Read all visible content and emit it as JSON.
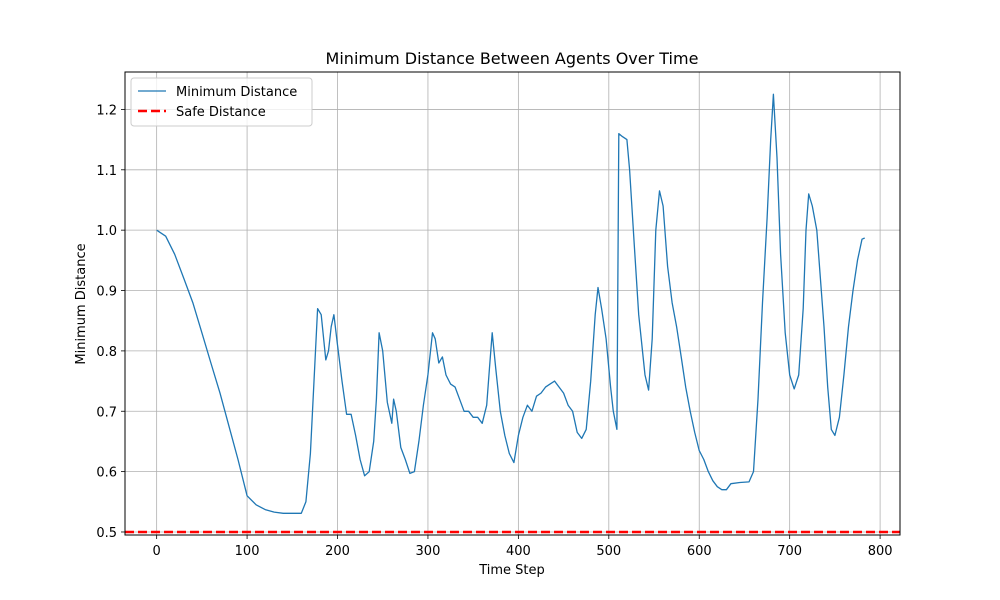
{
  "chart_data": {
    "type": "line",
    "title": "Minimum Distance Between Agents Over Time",
    "xlabel": "Time Step",
    "ylabel": "Minimum Distance",
    "xlim": [
      -35,
      822
    ],
    "ylim": [
      0.495,
      1.262
    ],
    "xticks": [
      "0",
      "100",
      "200",
      "300",
      "400",
      "500",
      "600",
      "700",
      "800"
    ],
    "yticks": [
      "0.5",
      "0.6",
      "0.7",
      "0.8",
      "0.9",
      "1.0",
      "1.1",
      "1.2"
    ],
    "grid": true,
    "legend_position": "top-left",
    "series": [
      {
        "name": "Minimum Distance",
        "color": "#1f77b4",
        "style": "solid",
        "points": [
          [
            0,
            1.0
          ],
          [
            10,
            0.99
          ],
          [
            20,
            0.96
          ],
          [
            30,
            0.92
          ],
          [
            40,
            0.88
          ],
          [
            50,
            0.83
          ],
          [
            60,
            0.78
          ],
          [
            70,
            0.73
          ],
          [
            80,
            0.675
          ],
          [
            90,
            0.62
          ],
          [
            100,
            0.56
          ],
          [
            110,
            0.545
          ],
          [
            120,
            0.537
          ],
          [
            130,
            0.533
          ],
          [
            140,
            0.531
          ],
          [
            150,
            0.531
          ],
          [
            160,
            0.531
          ],
          [
            165,
            0.55
          ],
          [
            170,
            0.63
          ],
          [
            175,
            0.78
          ],
          [
            178,
            0.87
          ],
          [
            182,
            0.86
          ],
          [
            187,
            0.785
          ],
          [
            190,
            0.8
          ],
          [
            193,
            0.84
          ],
          [
            196,
            0.86
          ],
          [
            200,
            0.81
          ],
          [
            205,
            0.75
          ],
          [
            210,
            0.695
          ],
          [
            215,
            0.695
          ],
          [
            220,
            0.66
          ],
          [
            225,
            0.62
          ],
          [
            230,
            0.593
          ],
          [
            235,
            0.6
          ],
          [
            240,
            0.65
          ],
          [
            243,
            0.72
          ],
          [
            246,
            0.83
          ],
          [
            250,
            0.8
          ],
          [
            255,
            0.715
          ],
          [
            260,
            0.68
          ],
          [
            262,
            0.72
          ],
          [
            265,
            0.7
          ],
          [
            270,
            0.64
          ],
          [
            275,
            0.62
          ],
          [
            280,
            0.597
          ],
          [
            285,
            0.6
          ],
          [
            290,
            0.65
          ],
          [
            295,
            0.71
          ],
          [
            300,
            0.76
          ],
          [
            305,
            0.83
          ],
          [
            308,
            0.82
          ],
          [
            312,
            0.78
          ],
          [
            316,
            0.79
          ],
          [
            320,
            0.76
          ],
          [
            325,
            0.745
          ],
          [
            330,
            0.74
          ],
          [
            335,
            0.72
          ],
          [
            340,
            0.7
          ],
          [
            345,
            0.7
          ],
          [
            350,
            0.69
          ],
          [
            355,
            0.69
          ],
          [
            360,
            0.68
          ],
          [
            365,
            0.71
          ],
          [
            368,
            0.77
          ],
          [
            371,
            0.83
          ],
          [
            375,
            0.77
          ],
          [
            380,
            0.7
          ],
          [
            385,
            0.66
          ],
          [
            390,
            0.63
          ],
          [
            395,
            0.615
          ],
          [
            400,
            0.66
          ],
          [
            405,
            0.69
          ],
          [
            410,
            0.71
          ],
          [
            415,
            0.7
          ],
          [
            420,
            0.725
          ],
          [
            425,
            0.73
          ],
          [
            430,
            0.74
          ],
          [
            435,
            0.745
          ],
          [
            440,
            0.75
          ],
          [
            445,
            0.74
          ],
          [
            450,
            0.73
          ],
          [
            455,
            0.71
          ],
          [
            460,
            0.7
          ],
          [
            465,
            0.665
          ],
          [
            470,
            0.655
          ],
          [
            475,
            0.67
          ],
          [
            480,
            0.75
          ],
          [
            485,
            0.86
          ],
          [
            488,
            0.905
          ],
          [
            492,
            0.87
          ],
          [
            497,
            0.82
          ],
          [
            502,
            0.74
          ],
          [
            505,
            0.7
          ],
          [
            509,
            0.67
          ],
          [
            511,
            1.16
          ],
          [
            515,
            1.155
          ],
          [
            520,
            1.15
          ],
          [
            523,
            1.1
          ],
          [
            528,
            0.98
          ],
          [
            533,
            0.86
          ],
          [
            540,
            0.76
          ],
          [
            544,
            0.735
          ],
          [
            548,
            0.82
          ],
          [
            552,
            1.0
          ],
          [
            556,
            1.065
          ],
          [
            560,
            1.04
          ],
          [
            565,
            0.94
          ],
          [
            570,
            0.88
          ],
          [
            575,
            0.84
          ],
          [
            580,
            0.79
          ],
          [
            585,
            0.74
          ],
          [
            590,
            0.7
          ],
          [
            595,
            0.665
          ],
          [
            600,
            0.635
          ],
          [
            605,
            0.62
          ],
          [
            610,
            0.6
          ],
          [
            615,
            0.585
          ],
          [
            620,
            0.575
          ],
          [
            625,
            0.57
          ],
          [
            630,
            0.57
          ],
          [
            635,
            0.58
          ],
          [
            645,
            0.582
          ],
          [
            655,
            0.583
          ],
          [
            660,
            0.6
          ],
          [
            665,
            0.72
          ],
          [
            670,
            0.88
          ],
          [
            675,
            1.02
          ],
          [
            679,
            1.15
          ],
          [
            682,
            1.225
          ],
          [
            686,
            1.12
          ],
          [
            690,
            0.96
          ],
          [
            695,
            0.83
          ],
          [
            700,
            0.76
          ],
          [
            705,
            0.737
          ],
          [
            710,
            0.76
          ],
          [
            715,
            0.87
          ],
          [
            718,
            1.0
          ],
          [
            721,
            1.06
          ],
          [
            725,
            1.04
          ],
          [
            730,
            1.0
          ],
          [
            734,
            0.92
          ],
          [
            738,
            0.84
          ],
          [
            742,
            0.74
          ],
          [
            746,
            0.67
          ],
          [
            750,
            0.66
          ],
          [
            755,
            0.69
          ],
          [
            760,
            0.76
          ],
          [
            765,
            0.84
          ],
          [
            770,
            0.9
          ],
          [
            775,
            0.95
          ],
          [
            780,
            0.985
          ],
          [
            783,
            0.987
          ]
        ]
      },
      {
        "name": "Safe Distance",
        "color": "#ff0000",
        "style": "dashed",
        "value": 0.5
      }
    ]
  }
}
